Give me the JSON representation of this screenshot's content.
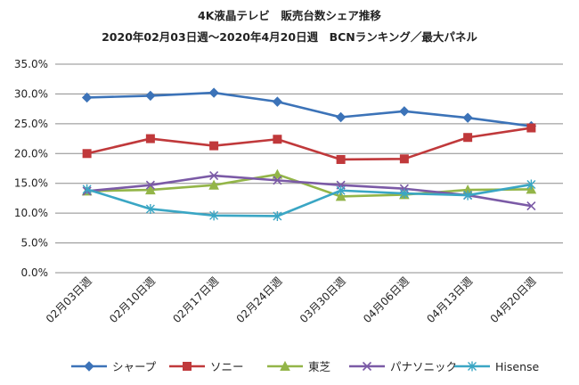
{
  "chart_data": {
    "type": "line",
    "title": "4K液晶テレビ　販売台数シェア推移",
    "subtitle": "2020年02月03日週～2020年4月20日週　BCNランキング／最大パネル",
    "xlabel": "",
    "ylabel": "",
    "ylim": [
      0,
      0.35
    ],
    "yticks": [
      "0.0%",
      "5.0%",
      "10.0%",
      "15.0%",
      "20.0%",
      "25.0%",
      "30.0%",
      "35.0%"
    ],
    "categories": [
      "02月03日週",
      "02月10日週",
      "02月17日週",
      "02月24日週",
      "03月30日週",
      "04月06日週",
      "04月13日週",
      "04月20日週"
    ],
    "grid": true,
    "legend": "bottom",
    "series": [
      {
        "name": "シャープ",
        "color": "#3c73b8",
        "marker": "diamond",
        "values": [
          0.294,
          0.297,
          0.302,
          0.287,
          0.261,
          0.271,
          0.26,
          0.246
        ]
      },
      {
        "name": "ソニー",
        "color": "#c0393b",
        "marker": "square",
        "values": [
          0.2,
          0.225,
          0.213,
          0.224,
          0.19,
          0.191,
          0.227,
          0.243
        ]
      },
      {
        "name": "東芝",
        "color": "#93b548",
        "marker": "triangle",
        "values": [
          0.137,
          0.139,
          0.147,
          0.165,
          0.128,
          0.131,
          0.139,
          0.14
        ]
      },
      {
        "name": "パナソニック",
        "color": "#7b5aa6",
        "marker": "x",
        "values": [
          0.137,
          0.147,
          0.163,
          0.155,
          0.147,
          0.141,
          0.13,
          0.112
        ]
      },
      {
        "name": "Hisense",
        "color": "#3aa6c4",
        "marker": "asterisk",
        "values": [
          0.14,
          0.107,
          0.096,
          0.095,
          0.138,
          0.133,
          0.13,
          0.148
        ]
      }
    ]
  }
}
